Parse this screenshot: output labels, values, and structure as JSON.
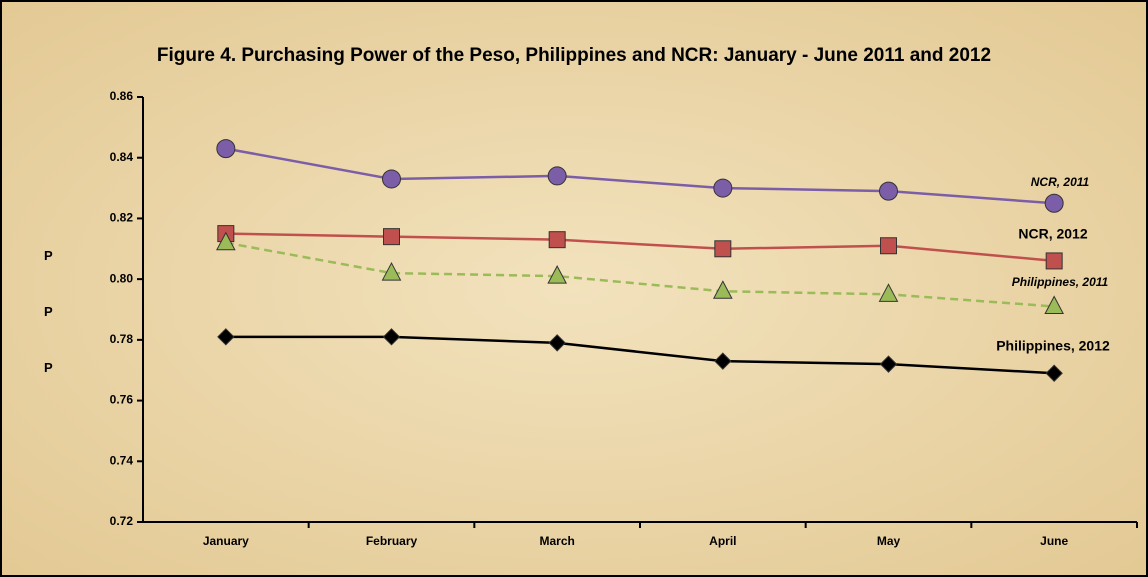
{
  "chart_data": {
    "type": "line",
    "title": "Figure 4. Purchasing Power of the Peso, Philippines and NCR: January - June 2011 and 2012",
    "ylabel": "PPP",
    "categories": [
      "January",
      "February",
      "March",
      "April",
      "May",
      "June"
    ],
    "series": [
      {
        "name": "NCR, 2011",
        "color": "#7b5ea7",
        "marker": "circle",
        "values": [
          0.843,
          0.833,
          0.834,
          0.83,
          0.829,
          0.825
        ]
      },
      {
        "name": "NCR, 2012",
        "color": "#c0504d",
        "marker": "square",
        "values": [
          0.815,
          0.814,
          0.813,
          0.81,
          0.811,
          0.806
        ]
      },
      {
        "name": "Philippines, 2011",
        "color": "#9bbb59",
        "marker": "triangle",
        "dashed": true,
        "values": [
          0.812,
          0.802,
          0.801,
          0.796,
          0.795,
          0.791
        ]
      },
      {
        "name": "Philippines, 2012",
        "color": "#000000",
        "marker": "diamond",
        "values": [
          0.781,
          0.781,
          0.779,
          0.773,
          0.772,
          0.769
        ]
      }
    ],
    "ylim": [
      0.72,
      0.86
    ],
    "yticks": [
      {
        "value": 0.72,
        "label": "0.72"
      },
      {
        "value": 0.74,
        "label": "0.74"
      },
      {
        "value": 0.76,
        "label": "0.76"
      },
      {
        "value": 0.78,
        "label": "0.78"
      },
      {
        "value": 0.8,
        "label": "0.80"
      },
      {
        "value": 0.82,
        "label": "0.82"
      },
      {
        "value": 0.84,
        "label": "0.84"
      },
      {
        "value": 0.86,
        "label": "0.86"
      }
    ],
    "grid": false
  }
}
